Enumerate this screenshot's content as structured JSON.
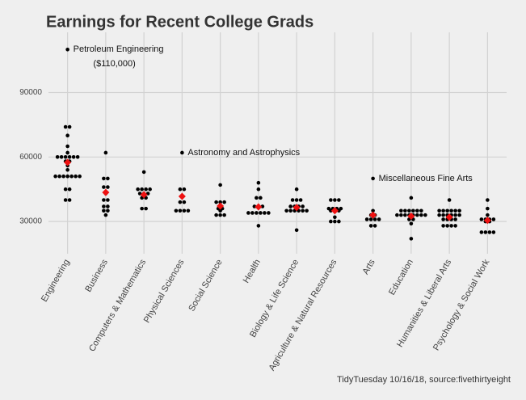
{
  "chart_data": {
    "type": "dotplot",
    "title": "Earnings for Recent College Grads",
    "caption": "TidyTuesday 10/16/18, source:fivethirtyeight",
    "categories": [
      "Engineering",
      "Business",
      "Computers & Mathematics",
      "Physical Sciences",
      "Social Science",
      "Health",
      "Biology & Life Science",
      "Agriculture & Natural Resources",
      "Arts",
      "Education",
      "Humanities & Liberal Arts",
      "Psychology & Social Work"
    ],
    "points": [
      [
        110000,
        74000,
        74000,
        70000,
        65000,
        62000,
        60000,
        60000,
        60000,
        60000,
        60000,
        60000,
        58000,
        58000,
        57000,
        56000,
        54000,
        51000,
        51000,
        51000,
        51000,
        51000,
        51000,
        51000,
        45000,
        45000,
        40000,
        40000
      ],
      [
        62000,
        50000,
        50000,
        46000,
        46000,
        43000,
        40000,
        40000,
        37000,
        37000,
        35000,
        35000,
        33000
      ],
      [
        53000,
        45000,
        45000,
        45000,
        45000,
        43000,
        43000,
        43000,
        41000,
        41000,
        36000,
        36000
      ],
      [
        62000,
        45000,
        45000,
        42000,
        39000,
        39000,
        35000,
        35000,
        35000,
        35000
      ],
      [
        47000,
        39000,
        39000,
        39000,
        36000,
        36000,
        35000,
        33000,
        33000,
        33000
      ],
      [
        48000,
        45000,
        41000,
        41000,
        37000,
        37000,
        37000,
        34000,
        34000,
        34000,
        34000,
        34000,
        34000,
        28000
      ],
      [
        45000,
        40000,
        40000,
        40000,
        37000,
        37000,
        37000,
        37000,
        35000,
        35000,
        35000,
        35000,
        35000,
        35000,
        26000
      ],
      [
        40000,
        40000,
        40000,
        36000,
        36000,
        36000,
        36000,
        35000,
        35000,
        35000,
        32000,
        30000,
        30000,
        30000
      ],
      [
        50000,
        35000,
        33000,
        33000,
        31000,
        31000,
        31000,
        31000,
        28000,
        28000
      ],
      [
        41000,
        35000,
        35000,
        35000,
        35000,
        35000,
        35000,
        33000,
        33000,
        33000,
        33000,
        33000,
        33000,
        33000,
        33000,
        31000,
        31000,
        29000,
        22000
      ],
      [
        40000,
        35000,
        35000,
        35000,
        35000,
        35000,
        35000,
        33000,
        33000,
        33000,
        33000,
        33000,
        33000,
        31000,
        31000,
        31000,
        31000,
        28000,
        28000,
        28000,
        28000
      ],
      [
        40000,
        36000,
        33000,
        31000,
        31000,
        31000,
        31000,
        30000,
        30000,
        25000,
        25000,
        25000,
        25000
      ]
    ],
    "means": [
      57500,
      43500,
      42500,
      41700,
      37200,
      36800,
      36500,
      35000,
      33000,
      32500,
      32000,
      30500
    ],
    "point_color": "#000000",
    "mean_color": "#ee1111",
    "annotations": [
      {
        "category": "Engineering",
        "lines": [
          "Petroleum Engineering",
          "($110,000)"
        ]
      },
      {
        "category": "Physical Sciences",
        "lines": [
          "Astronomy and Astrophysics"
        ]
      },
      {
        "category": "Arts",
        "lines": [
          "Miscellaneous Fine Arts"
        ]
      }
    ],
    "ylim": [
      15000,
      118000
    ],
    "yticks": [
      30000,
      60000,
      90000
    ],
    "grid": true
  }
}
